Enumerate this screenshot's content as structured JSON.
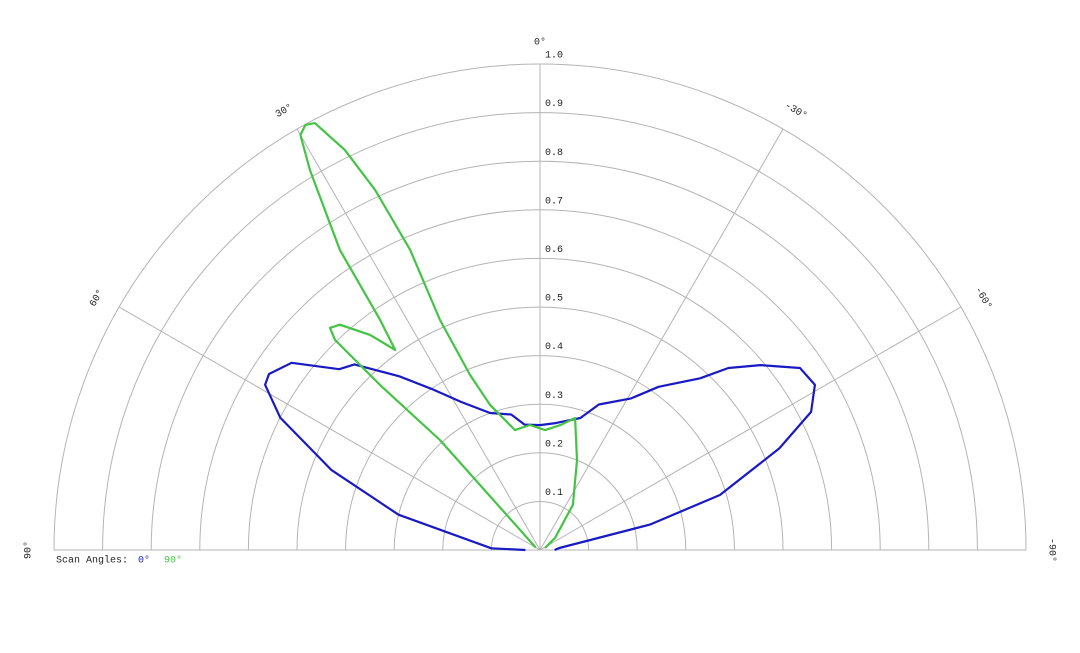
{
  "chart_data": {
    "type": "polar",
    "rlim": [
      0,
      1
    ],
    "rticks": [
      0.1,
      0.2,
      0.3,
      0.4,
      0.5,
      0.6,
      0.7,
      0.8,
      0.9,
      {
        "value": 1,
        "label": "1.0"
      }
    ],
    "thetalim": [
      90,
      -90
    ],
    "thetaticks": [
      {
        "value": 90,
        "label": "90°"
      },
      {
        "value": 60,
        "label": "60°"
      },
      {
        "value": 30,
        "label": "30°"
      },
      {
        "value": 0,
        "label": "0°"
      },
      {
        "value": -30,
        "label": "-30°"
      },
      {
        "value": -60,
        "label": "-60°"
      },
      {
        "value": -90,
        "label": "-90°"
      }
    ],
    "grid": true,
    "legend_title": "Scan Angles:",
    "legend": "bottom-left",
    "series": [
      {
        "name": "0°",
        "color": "#1a1ac4",
        "theta": [
          90,
          88,
          76,
          69,
          63,
          59,
          57,
          53,
          48,
          45,
          39,
          34,
          28,
          20,
          12,
          7,
          0,
          -7,
          -17,
          -22,
          -31,
          -36,
          -43,
          -46,
          -50,
          -55,
          -59,
          -63,
          -67,
          -73,
          -77,
          -84,
          -90
        ],
        "values": [
          0.03,
          0.1,
          0.3,
          0.46,
          0.6,
          0.66,
          0.665,
          0.64,
          0.556,
          0.54,
          0.46,
          0.4,
          0.345,
          0.3,
          0.285,
          0.26,
          0.257,
          0.263,
          0.284,
          0.323,
          0.364,
          0.415,
          0.483,
          0.539,
          0.592,
          0.653,
          0.66,
          0.626,
          0.535,
          0.387,
          0.232,
          0.04,
          0.03
        ]
      },
      {
        "name": "90°",
        "color": "#44c444",
        "theta": [
          60,
          42.3,
          44.1,
          44.3,
          43.4,
          41.6,
          38.3,
          35.9,
          34.8,
          33.7,
          31.2,
          30,
          28.9,
          27.8,
          26,
          24.6,
          23.4,
          23.5,
          21.8,
          19,
          11.8,
          4.6,
          -2.4,
          -9.1,
          -14.9,
          -22.4,
          -36,
          -51,
          -68
        ],
        "values": [
          0.01,
          0.306,
          0.473,
          0.604,
          0.629,
          0.62,
          0.564,
          0.508,
          0.577,
          0.742,
          0.914,
          0.986,
          0.999,
          0.993,
          0.916,
          0.815,
          0.673,
          0.516,
          0.388,
          0.316,
          0.252,
          0.258,
          0.247,
          0.26,
          0.281,
          0.2,
          0.115,
          0.04,
          0.011
        ]
      }
    ]
  }
}
